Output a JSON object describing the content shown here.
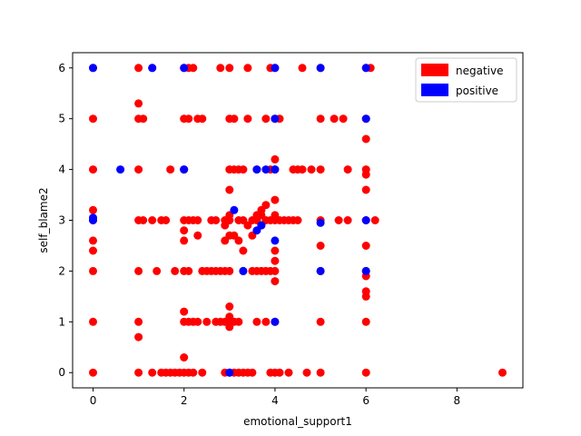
{
  "chart_data": {
    "type": "scatter",
    "xlabel": "emotional_support1",
    "ylabel": "self_blame2",
    "xlim": [
      -0.45,
      9.45
    ],
    "ylim": [
      -0.3,
      6.3
    ],
    "x_ticks": [
      0,
      2,
      4,
      6,
      8
    ],
    "y_ticks": [
      0,
      1,
      2,
      3,
      4,
      5,
      6
    ],
    "grid": false,
    "legend_position": "top-right",
    "series": [
      {
        "name": "negative",
        "color": "#ff0000",
        "points": [
          [
            0,
            0
          ],
          [
            0,
            1
          ],
          [
            0,
            2
          ],
          [
            0,
            2.4
          ],
          [
            0,
            2.6
          ],
          [
            0,
            3
          ],
          [
            0,
            3.2
          ],
          [
            0,
            4
          ],
          [
            0,
            5
          ],
          [
            0,
            6
          ],
          [
            1,
            0
          ],
          [
            1,
            0.7
          ],
          [
            1,
            1
          ],
          [
            1,
            2
          ],
          [
            1,
            3
          ],
          [
            1,
            4
          ],
          [
            1,
            5
          ],
          [
            1,
            5.3
          ],
          [
            1,
            6
          ],
          [
            1.1,
            3
          ],
          [
            1.1,
            5
          ],
          [
            1.3,
            0
          ],
          [
            1.3,
            3
          ],
          [
            1.3,
            6
          ],
          [
            1.4,
            2
          ],
          [
            1.5,
            0
          ],
          [
            1.5,
            3
          ],
          [
            1.6,
            0
          ],
          [
            1.6,
            3
          ],
          [
            1.7,
            0
          ],
          [
            1.7,
            4
          ],
          [
            1.8,
            2
          ],
          [
            1.8,
            0
          ],
          [
            1.9,
            0
          ],
          [
            2,
            0
          ],
          [
            2,
            0.3
          ],
          [
            2,
            1
          ],
          [
            2,
            1.2
          ],
          [
            2,
            2
          ],
          [
            2,
            2.6
          ],
          [
            2,
            2.8
          ],
          [
            2,
            3
          ],
          [
            2,
            4
          ],
          [
            2,
            5
          ],
          [
            2,
            6
          ],
          [
            2.1,
            0
          ],
          [
            2.1,
            1
          ],
          [
            2.1,
            2
          ],
          [
            2.1,
            3
          ],
          [
            2.1,
            5
          ],
          [
            2.1,
            6
          ],
          [
            2.2,
            0
          ],
          [
            2.2,
            1
          ],
          [
            2.2,
            3
          ],
          [
            2.2,
            6
          ],
          [
            2.3,
            1
          ],
          [
            2.3,
            2.7
          ],
          [
            2.3,
            3
          ],
          [
            2.3,
            5
          ],
          [
            2.4,
            0
          ],
          [
            2.4,
            2
          ],
          [
            2.4,
            5
          ],
          [
            2.5,
            1
          ],
          [
            2.5,
            2
          ],
          [
            2.6,
            2
          ],
          [
            2.6,
            3
          ],
          [
            2.7,
            1
          ],
          [
            2.7,
            2
          ],
          [
            2.7,
            3
          ],
          [
            2.8,
            1
          ],
          [
            2.8,
            2
          ],
          [
            2.8,
            6
          ],
          [
            2.9,
            0
          ],
          [
            2.9,
            1
          ],
          [
            2.9,
            2
          ],
          [
            2.9,
            2.6
          ],
          [
            2.9,
            2.9
          ],
          [
            2.9,
            3
          ],
          [
            3,
            0
          ],
          [
            3,
            0.9
          ],
          [
            3,
            1
          ],
          [
            3,
            1.1
          ],
          [
            3,
            1.3
          ],
          [
            3,
            2
          ],
          [
            3,
            2.7
          ],
          [
            3,
            3
          ],
          [
            3,
            3.1
          ],
          [
            3,
            3.6
          ],
          [
            3,
            4
          ],
          [
            3,
            5
          ],
          [
            3,
            6
          ],
          [
            3.1,
            0
          ],
          [
            3.1,
            1
          ],
          [
            3.1,
            2.7
          ],
          [
            3.1,
            4
          ],
          [
            3.1,
            5
          ],
          [
            3.2,
            0
          ],
          [
            3.2,
            1
          ],
          [
            3.2,
            2.6
          ],
          [
            3.2,
            3
          ],
          [
            3.2,
            4
          ],
          [
            3.3,
            0
          ],
          [
            3.3,
            2
          ],
          [
            3.3,
            2.4
          ],
          [
            3.3,
            3
          ],
          [
            3.3,
            4
          ],
          [
            3.4,
            0
          ],
          [
            3.4,
            2.9
          ],
          [
            3.4,
            5
          ],
          [
            3.4,
            6
          ],
          [
            3.5,
            0
          ],
          [
            3.5,
            2.7
          ],
          [
            3.5,
            3
          ],
          [
            3.5,
            2
          ],
          [
            3.6,
            1
          ],
          [
            3.6,
            2
          ],
          [
            3.6,
            3
          ],
          [
            3.6,
            3.1
          ],
          [
            3.6,
            4
          ],
          [
            3.7,
            2
          ],
          [
            3.7,
            2.9
          ],
          [
            3.7,
            3.1
          ],
          [
            3.7,
            3.2
          ],
          [
            3.8,
            1
          ],
          [
            3.8,
            2
          ],
          [
            3.8,
            3
          ],
          [
            3.8,
            3.3
          ],
          [
            3.8,
            5
          ],
          [
            3.9,
            0
          ],
          [
            3.9,
            2
          ],
          [
            3.9,
            3
          ],
          [
            3.9,
            4
          ],
          [
            3.9,
            6
          ],
          [
            4,
            0
          ],
          [
            4,
            1
          ],
          [
            4,
            1.8
          ],
          [
            4,
            2
          ],
          [
            4,
            2.2
          ],
          [
            4,
            2.4
          ],
          [
            4,
            3
          ],
          [
            4,
            3.1
          ],
          [
            4,
            3.4
          ],
          [
            4,
            4
          ],
          [
            4,
            4.2
          ],
          [
            4,
            5
          ],
          [
            4,
            6
          ],
          [
            4.1,
            0
          ],
          [
            4.1,
            3
          ],
          [
            4.1,
            5
          ],
          [
            4.2,
            3
          ],
          [
            4.3,
            0
          ],
          [
            4.3,
            3
          ],
          [
            4.4,
            3
          ],
          [
            4.4,
            4
          ],
          [
            4.5,
            3
          ],
          [
            4.5,
            4
          ],
          [
            4.6,
            4
          ],
          [
            4.6,
            6
          ],
          [
            4.7,
            0
          ],
          [
            4.8,
            4
          ],
          [
            5,
            0
          ],
          [
            5,
            1
          ],
          [
            5,
            2
          ],
          [
            5,
            2.5
          ],
          [
            5,
            3
          ],
          [
            5,
            4
          ],
          [
            5,
            5
          ],
          [
            5,
            6
          ],
          [
            5.3,
            5
          ],
          [
            5.4,
            3
          ],
          [
            5.5,
            5
          ],
          [
            5.6,
            4
          ],
          [
            5.6,
            3
          ],
          [
            6,
            0
          ],
          [
            6,
            1
          ],
          [
            6,
            1.5
          ],
          [
            6,
            1.6
          ],
          [
            6,
            1.9
          ],
          [
            6,
            2
          ],
          [
            6,
            2.5
          ],
          [
            6,
            3
          ],
          [
            6,
            3.6
          ],
          [
            6,
            3.9
          ],
          [
            6,
            4
          ],
          [
            6,
            4.6
          ],
          [
            6,
            5
          ],
          [
            6,
            6
          ],
          [
            6.1,
            6
          ],
          [
            6.2,
            3
          ],
          [
            9,
            0
          ]
        ]
      },
      {
        "name": "positive",
        "color": "#0000ff",
        "points": [
          [
            0,
            3
          ],
          [
            0,
            3.05
          ],
          [
            0,
            6
          ],
          [
            0.6,
            4
          ],
          [
            1.3,
            6
          ],
          [
            2,
            4
          ],
          [
            2,
            6
          ],
          [
            3,
            0
          ],
          [
            3.1,
            3.2
          ],
          [
            3.3,
            2
          ],
          [
            3.6,
            2.8
          ],
          [
            3.6,
            4
          ],
          [
            3.7,
            2.9
          ],
          [
            3.8,
            4
          ],
          [
            4,
            1
          ],
          [
            4,
            2.6
          ],
          [
            4,
            4
          ],
          [
            4,
            5
          ],
          [
            4,
            6
          ],
          [
            5,
            2
          ],
          [
            5,
            2.95
          ],
          [
            5,
            6
          ],
          [
            6,
            2
          ],
          [
            6,
            3
          ],
          [
            6,
            5
          ],
          [
            6,
            6
          ]
        ]
      }
    ]
  }
}
